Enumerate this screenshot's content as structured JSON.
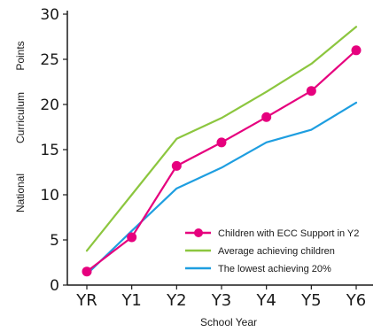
{
  "chart_data": {
    "type": "line",
    "title": "",
    "xlabel": "School Year",
    "ylabel_words": [
      "National",
      "Curriculum",
      "Points"
    ],
    "categories": [
      "YR",
      "Y1",
      "Y2",
      "Y3",
      "Y4",
      "Y5",
      "Y6"
    ],
    "yticks": [
      0,
      5,
      10,
      15,
      20,
      25,
      30
    ],
    "ylim": [
      0,
      30
    ],
    "grid": false,
    "legend_position": "bottom-right",
    "series": [
      {
        "name": "Children with ECC Support in Y2",
        "color": "#e6007e",
        "markers": true,
        "values": [
          1.5,
          5.3,
          13.2,
          15.8,
          18.6,
          21.5,
          26.0
        ]
      },
      {
        "name": "Average achieving children",
        "color": "#8cc63f",
        "markers": false,
        "values": [
          3.8,
          10.0,
          16.2,
          18.5,
          21.4,
          24.5,
          28.6
        ]
      },
      {
        "name": "The lowest achieving 20%",
        "color": "#1e9ee0",
        "markers": false,
        "values": [
          1.2,
          6.0,
          10.7,
          13.0,
          15.8,
          17.2,
          20.2
        ]
      }
    ]
  }
}
